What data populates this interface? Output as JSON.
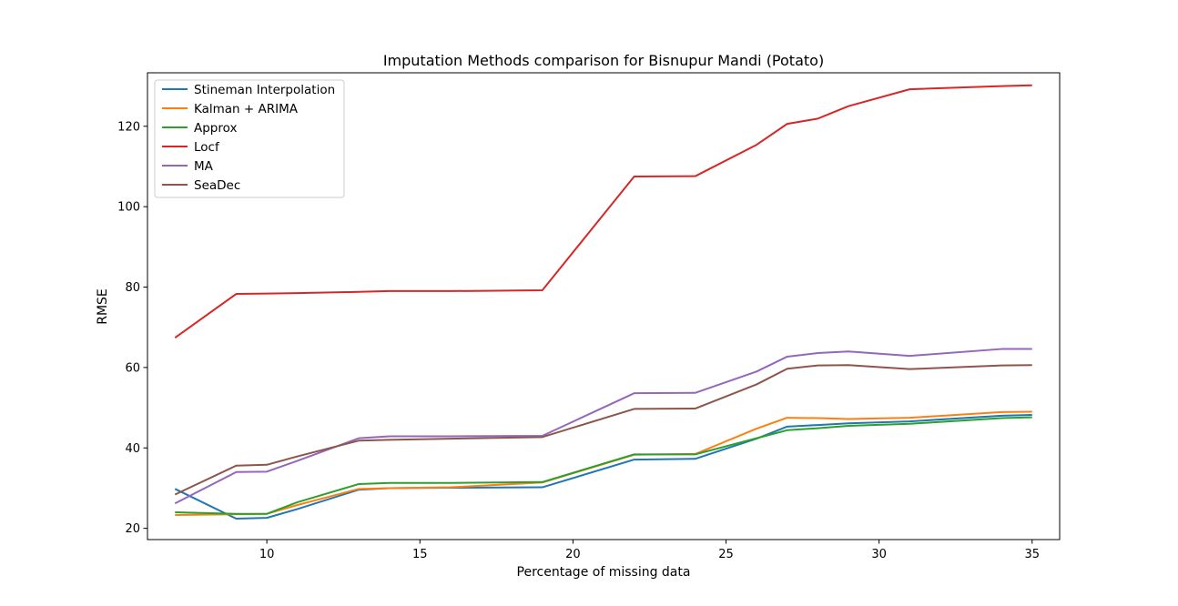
{
  "chart_data": {
    "type": "line",
    "title": "Imputation Methods comparison for Bisnupur Mandi (Potato)",
    "xlabel": "Percentage of missing data",
    "ylabel": "RMSE",
    "xlim": [
      6.1,
      35.9
    ],
    "ylim": [
      17.2,
      133.3
    ],
    "xticks": [
      10,
      15,
      20,
      25,
      30,
      35
    ],
    "yticks": [
      20,
      40,
      60,
      80,
      100,
      120
    ],
    "grid": false,
    "legend_position": "upper-left",
    "x": [
      7,
      9,
      10,
      11,
      13,
      14,
      16,
      19,
      22,
      24,
      26,
      27,
      28,
      29,
      31,
      34,
      35
    ],
    "series": [
      {
        "name": "Stineman Interpolation",
        "color": "#1f77b4",
        "values": [
          29.8,
          22.4,
          22.6,
          24.8,
          29.6,
          30.0,
          30.1,
          30.2,
          37.1,
          37.3,
          42.3,
          45.3,
          45.7,
          46.1,
          46.6,
          48.0,
          48.2
        ]
      },
      {
        "name": "Kalman + ARIMA",
        "color": "#ff7f0e",
        "values": [
          23.3,
          23.5,
          23.6,
          25.8,
          29.8,
          30.0,
          30.2,
          31.4,
          38.3,
          38.5,
          44.8,
          47.5,
          47.4,
          47.2,
          47.5,
          48.9,
          49.0
        ]
      },
      {
        "name": "Approx",
        "color": "#2ca02c",
        "values": [
          24.0,
          23.6,
          23.6,
          26.5,
          31.0,
          31.3,
          31.3,
          31.5,
          38.4,
          38.4,
          42.4,
          44.4,
          44.9,
          45.5,
          46.0,
          47.4,
          47.6
        ]
      },
      {
        "name": "Locf",
        "color": "#d62728",
        "values": [
          67.4,
          78.3,
          78.4,
          78.5,
          78.8,
          79.0,
          79.0,
          79.2,
          107.5,
          107.6,
          115.4,
          120.6,
          121.9,
          125.0,
          129.2,
          130.0,
          130.2
        ]
      },
      {
        "name": "MA",
        "color": "#9467bd",
        "values": [
          26.2,
          34.0,
          34.1,
          36.8,
          42.4,
          42.9,
          42.9,
          43.0,
          53.6,
          53.7,
          59.0,
          62.7,
          63.6,
          64.0,
          62.9,
          64.6,
          64.6
        ]
      },
      {
        "name": "SeaDec",
        "color": "#8c564b",
        "values": [
          28.4,
          35.6,
          35.8,
          37.9,
          41.8,
          42.0,
          42.3,
          42.7,
          49.7,
          49.8,
          55.8,
          59.7,
          60.5,
          60.6,
          59.6,
          60.5,
          60.6
        ]
      }
    ]
  }
}
